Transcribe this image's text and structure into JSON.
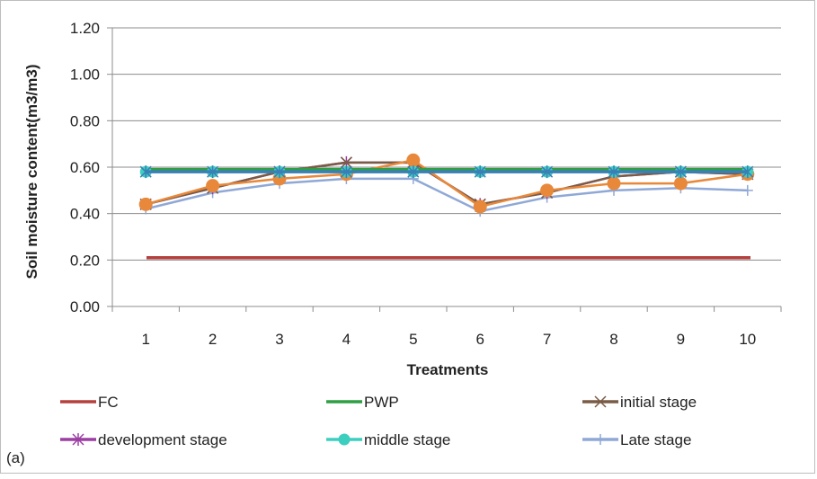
{
  "chart_data": {
    "type": "line",
    "title": "",
    "xlabel": "Treatments",
    "ylabel": "Soil moisture content(m3/m3)",
    "ylim": [
      0,
      1.2
    ],
    "grid": "horizontal",
    "legend_position": "bottom",
    "panel_label": "(a)",
    "categories": [
      "1",
      "2",
      "3",
      "4",
      "5",
      "6",
      "7",
      "8",
      "9",
      "10"
    ],
    "y_ticks": [
      "0.00",
      "0.20",
      "0.40",
      "0.60",
      "0.80",
      "1.00",
      "1.20"
    ],
    "series": [
      {
        "name": "FC",
        "color": "#b5413f",
        "marker": "none",
        "values": [
          0.21,
          0.21,
          0.21,
          0.21,
          0.21,
          0.21,
          0.21,
          0.21,
          0.21,
          0.21
        ]
      },
      {
        "name": "PWP",
        "color": "#2f9e44",
        "marker": "none",
        "values": [
          0.59,
          0.59,
          0.59,
          0.59,
          0.59,
          0.59,
          0.59,
          0.59,
          0.59,
          0.59
        ]
      },
      {
        "name": "initial stage",
        "color": "#7a5c46",
        "marker": "x",
        "values": [
          0.44,
          0.51,
          0.58,
          0.62,
          0.62,
          0.44,
          0.49,
          0.56,
          0.58,
          0.57
        ]
      },
      {
        "name": "development stage",
        "color": "#9b3fa3",
        "marker": "star",
        "values": [
          0.44,
          0.51,
          0.58,
          0.62,
          0.62,
          0.44,
          0.49,
          0.56,
          0.58,
          0.57
        ]
      },
      {
        "name": "middle stage",
        "color": "#3ccfc0",
        "marker": "circle",
        "values": [
          0.58,
          0.58,
          0.58,
          0.58,
          0.58,
          0.58,
          0.58,
          0.58,
          0.58,
          0.58
        ]
      },
      {
        "name": "Late stage",
        "color": "#8fa8d6",
        "marker": "plus",
        "values": [
          0.42,
          0.49,
          0.53,
          0.55,
          0.55,
          0.41,
          0.47,
          0.5,
          0.51,
          0.5
        ]
      },
      {
        "name": "",
        "color": "#e8883a",
        "marker": "circle",
        "legend": false,
        "values": [
          0.44,
          0.52,
          0.55,
          0.57,
          0.63,
          0.43,
          0.5,
          0.53,
          0.53,
          0.57
        ]
      },
      {
        "name": "",
        "color": "#3a7fb5",
        "marker": "star",
        "legend": false,
        "values": [
          0.58,
          0.58,
          0.58,
          0.58,
          0.58,
          0.58,
          0.58,
          0.58,
          0.58,
          0.58
        ]
      }
    ]
  }
}
